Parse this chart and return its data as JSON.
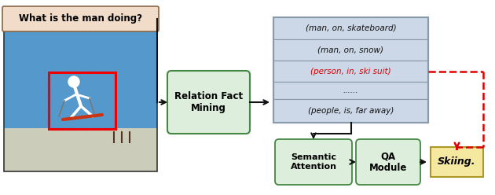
{
  "question_text": "What is the man doing?",
  "relation_fact_text": "Relation Fact\nMining",
  "facts": [
    "(man, on, skateboard)",
    "(man, on, snow)",
    "(person, in, ski suit)",
    "......",
    "(people, is, far away)"
  ],
  "fact_highlighted_index": 2,
  "semantic_text": "Semantic\nAttention",
  "qa_text": "QA\nModule",
  "answer_text": "Skiing.",
  "bg_color": "#ffffff",
  "question_box_color": "#f0dcc8",
  "relation_box_color": "#ddeedd",
  "facts_row_color": "#ccd8e8",
  "facts_border_color": "#8899aa",
  "highlight_fact_color": "#dd0000",
  "semantic_box_color": "#ddeedd",
  "qa_box_color": "#ddeedd",
  "answer_box_color": "#f5e8a0",
  "answer_border_color": "#aa9922",
  "arrow_color": "#111111",
  "dashed_arrow_color": "#dd0000",
  "sky_color": "#4488bb",
  "snow_color": "#ccccbb",
  "img_border_color": "#333333",
  "green_border_color": "#448844"
}
